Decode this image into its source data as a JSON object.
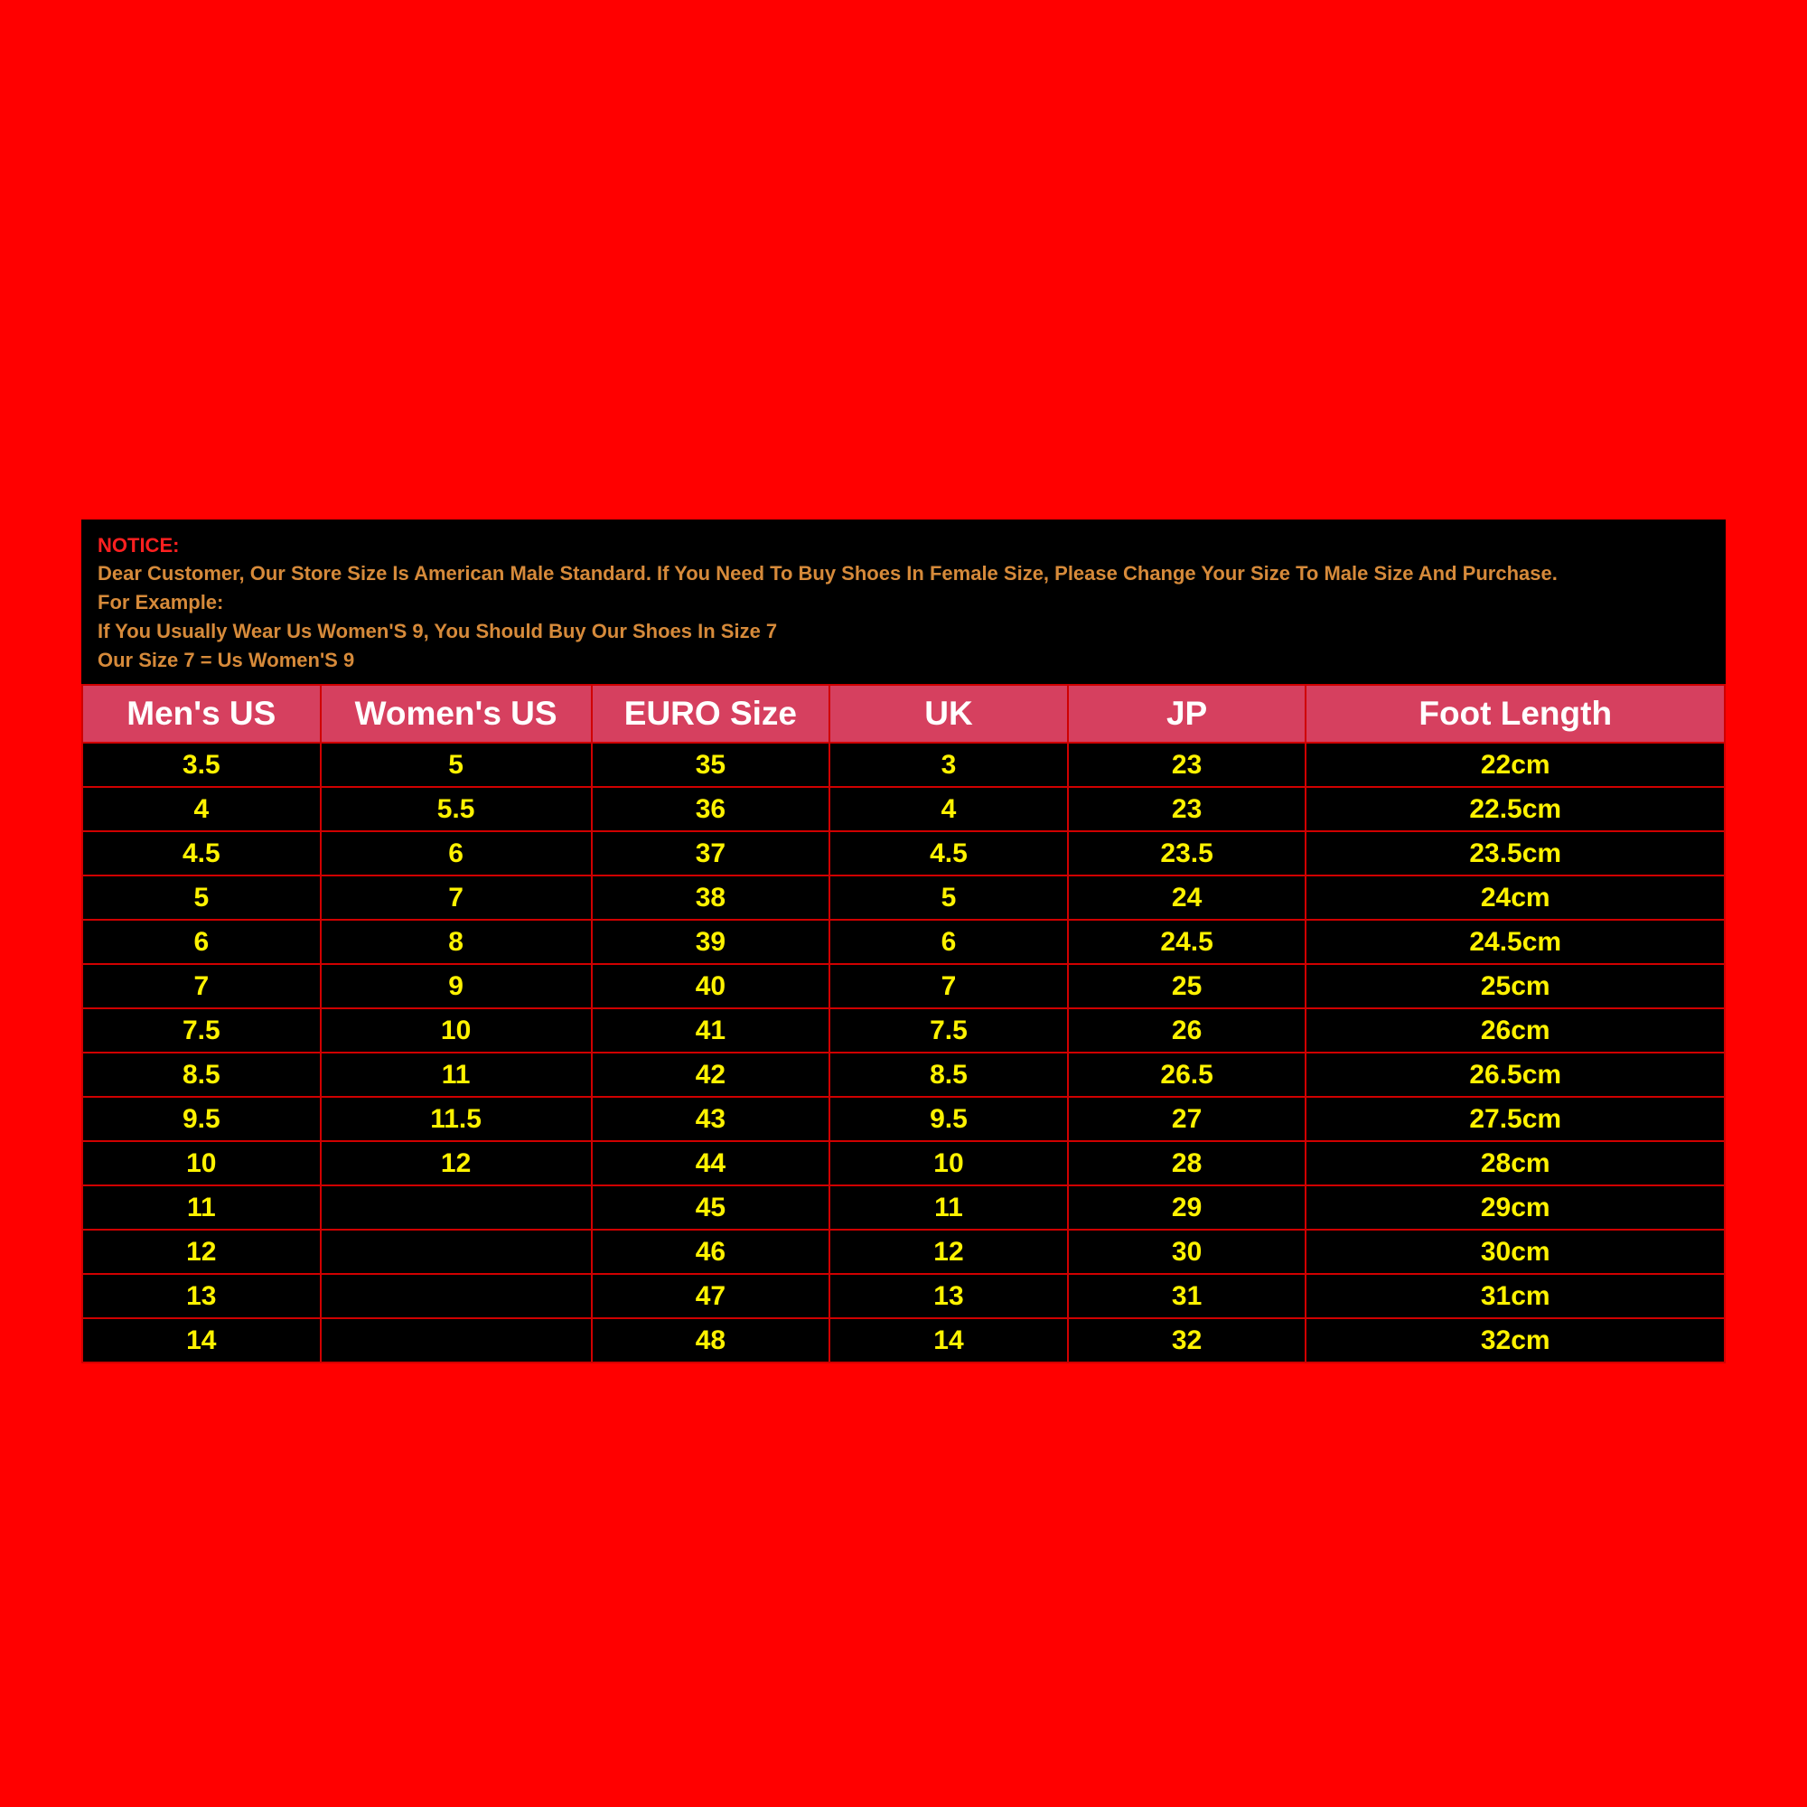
{
  "notice": {
    "title": "NOTICE:",
    "line1": "Dear Customer, Our Store Size Is American Male Standard. If You Need To Buy Shoes In Female Size, Please Change Your Size To Male Size And Purchase.",
    "line2": "For Example:",
    "line3": "If You Usually Wear Us Women'S 9, You Should Buy Our Shoes In Size 7",
    "line4": "Our Size 7 = Us Women'S 9"
  },
  "table": {
    "type": "table",
    "header_bg": "#d6405f",
    "header_fg": "#ffffff",
    "cell_fg": "#fff200",
    "cell_bg": "#000000",
    "border_color": "#d00000",
    "columns": [
      "Men's US",
      "Women's US",
      "EURO Size",
      "UK",
      "JP",
      "Foot Length"
    ],
    "column_widths_pct": [
      14.5,
      16.5,
      14.5,
      14.5,
      14.5,
      25.5
    ],
    "header_fontsize": 37,
    "cell_fontsize": 30,
    "rows": [
      [
        "3.5",
        "5",
        "35",
        "3",
        "23",
        "22cm"
      ],
      [
        "4",
        "5.5",
        "36",
        "4",
        "23",
        "22.5cm"
      ],
      [
        "4.5",
        "6",
        "37",
        "4.5",
        "23.5",
        "23.5cm"
      ],
      [
        "5",
        "7",
        "38",
        "5",
        "24",
        "24cm"
      ],
      [
        "6",
        "8",
        "39",
        "6",
        "24.5",
        "24.5cm"
      ],
      [
        "7",
        "9",
        "40",
        "7",
        "25",
        "25cm"
      ],
      [
        "7.5",
        "10",
        "41",
        "7.5",
        "26",
        "26cm"
      ],
      [
        "8.5",
        "11",
        "42",
        "8.5",
        "26.5",
        "26.5cm"
      ],
      [
        "9.5",
        "11.5",
        "43",
        "9.5",
        "27",
        "27.5cm"
      ],
      [
        "10",
        "12",
        "44",
        "10",
        "28",
        "28cm"
      ],
      [
        "11",
        "",
        "45",
        "11",
        "29",
        "29cm"
      ],
      [
        "12",
        "",
        "46",
        "12",
        "30",
        "30cm"
      ],
      [
        "13",
        "",
        "47",
        "13",
        "31",
        "31cm"
      ],
      [
        "14",
        "",
        "48",
        "14",
        "32",
        "32cm"
      ]
    ]
  },
  "page_bg": "#ff0000",
  "panel_bg": "#000000",
  "notice_title_color": "#ff2020",
  "notice_text_color": "#d68a3a"
}
